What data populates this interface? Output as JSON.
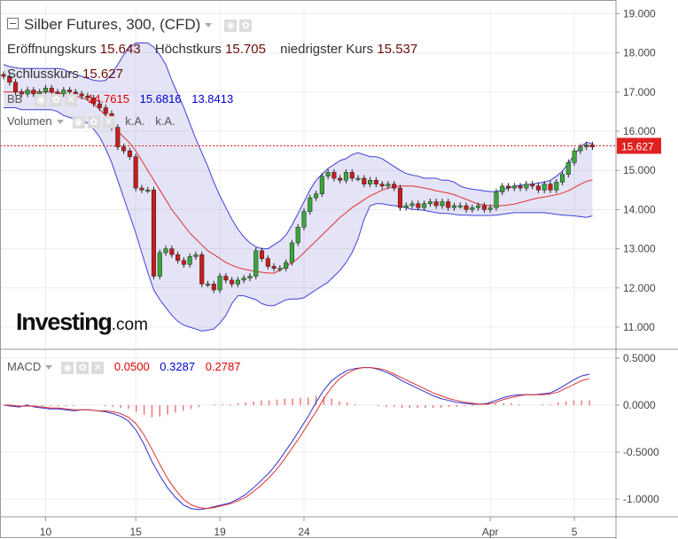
{
  "header": {
    "title": "Silber Futures, 300, (CFD)",
    "ohlc": [
      {
        "label": "Eröffnungskurs",
        "value": "15.643"
      },
      {
        "label": "Höchstkurs",
        "value": "15.705"
      },
      {
        "label": "niedrigster Kurs",
        "value": "15.537"
      },
      {
        "label": "Schlusskurs",
        "value": "15.627"
      }
    ]
  },
  "indicators": {
    "bb": {
      "label": "BB",
      "v1": "14.7615",
      "v2": "15.6816",
      "v3": "13.8413"
    },
    "volume": {
      "label": "Volumen",
      "v1": "k.A.",
      "v2": "k.A."
    },
    "macd": {
      "label": "MACD",
      "v1": "0.0500",
      "v2": "0.3287",
      "v3": "0.2787"
    }
  },
  "logo": {
    "main": "Investing",
    "suffix": ".com"
  },
  "price_tag": "15.627",
  "colors": {
    "up": "#3aa63a",
    "down": "#c91c1c",
    "bb_band": "#4040d8",
    "bb_mid": "#e03030",
    "fill": "rgba(120,120,210,0.2)",
    "macd": "#2e2ed6",
    "signal": "#e03030",
    "hist": "#f07070"
  },
  "chart_data": [
    {
      "type": "candlestick",
      "title": "Silber Futures, 300, (CFD)",
      "x_ticks": [
        {
          "index": 7,
          "label": "10"
        },
        {
          "index": 22,
          "label": "15"
        },
        {
          "index": 36,
          "label": "19"
        },
        {
          "index": 50,
          "label": "24"
        },
        {
          "index": 81,
          "label": "Apr"
        },
        {
          "index": 95,
          "label": "5"
        }
      ],
      "ylim": [
        10.6,
        19.2
      ],
      "y_ticks": [
        "19.000",
        "18.000",
        "17.000",
        "16.000",
        "15.000",
        "14.000",
        "13.000",
        "12.000",
        "11.000"
      ],
      "last_price": 15.627,
      "close": [
        17.4,
        17.25,
        17.0,
        16.95,
        17.05,
        16.95,
        17.0,
        17.1,
        17.0,
        16.95,
        17.05,
        17.0,
        16.95,
        16.9,
        16.85,
        16.7,
        16.6,
        16.45,
        16.1,
        15.6,
        15.5,
        15.35,
        14.55,
        14.5,
        14.5,
        12.3,
        12.9,
        13.0,
        12.85,
        12.7,
        12.6,
        12.8,
        12.85,
        12.1,
        12.1,
        11.95,
        12.3,
        12.2,
        12.1,
        12.2,
        12.25,
        12.3,
        12.95,
        12.75,
        12.55,
        12.5,
        12.5,
        12.65,
        13.15,
        13.55,
        13.95,
        14.3,
        14.4,
        14.85,
        14.95,
        14.8,
        14.75,
        14.95,
        14.8,
        14.8,
        14.65,
        14.75,
        14.65,
        14.6,
        14.65,
        14.55,
        14.05,
        14.1,
        14.15,
        14.05,
        14.15,
        14.2,
        14.1,
        14.2,
        14.05,
        14.1,
        14.1,
        14.0,
        14.05,
        14.1,
        14.0,
        14.05,
        14.45,
        14.6,
        14.55,
        14.6,
        14.55,
        14.65,
        14.6,
        14.5,
        14.65,
        14.5,
        14.7,
        14.9,
        15.2,
        15.5,
        15.6,
        15.65,
        15.6
      ],
      "bb_mid": [
        17.0,
        17.0,
        17.0,
        17.0,
        17.0,
        17.0,
        17.0,
        17.0,
        17.0,
        16.98,
        16.96,
        16.93,
        16.9,
        16.85,
        16.8,
        16.7,
        16.55,
        16.4,
        16.2,
        16.0,
        15.85,
        15.7,
        15.5,
        15.25,
        15.0,
        14.75,
        14.5,
        14.25,
        14.0,
        13.8,
        13.6,
        13.4,
        13.25,
        13.1,
        12.95,
        12.85,
        12.75,
        12.65,
        12.58,
        12.52,
        12.48,
        12.45,
        12.42,
        12.4,
        12.38,
        12.38,
        12.45,
        12.55,
        12.65,
        12.75,
        12.9,
        13.05,
        13.2,
        13.35,
        13.5,
        13.65,
        13.8,
        13.92,
        14.05,
        14.15,
        14.25,
        14.35,
        14.42,
        14.5,
        14.55,
        14.58,
        14.6,
        14.6,
        14.6,
        14.58,
        14.55,
        14.52,
        14.48,
        14.45,
        14.42,
        14.38,
        14.32,
        14.26,
        14.2,
        14.14,
        14.12,
        14.1,
        14.1,
        14.1,
        14.12,
        14.14,
        14.18,
        14.22,
        14.26,
        14.3,
        14.32,
        14.35,
        14.38,
        14.42,
        14.48,
        14.56,
        14.65,
        14.72,
        14.76
      ],
      "bb_upper": [
        17.7,
        17.65,
        17.62,
        17.6,
        17.6,
        17.6,
        17.6,
        17.6,
        17.6,
        17.6,
        17.58,
        17.5,
        17.45,
        17.4,
        17.35,
        17.3,
        17.28,
        17.3,
        17.45,
        17.7,
        17.95,
        18.15,
        18.25,
        18.25,
        18.25,
        18.15,
        17.95,
        17.7,
        17.3,
        16.95,
        16.6,
        16.2,
        15.8,
        15.45,
        15.1,
        14.7,
        14.35,
        14.05,
        13.75,
        13.5,
        13.3,
        13.15,
        13.05,
        13.0,
        13.0,
        13.1,
        13.2,
        13.35,
        13.6,
        13.9,
        14.2,
        14.5,
        14.75,
        14.9,
        15.05,
        15.15,
        15.25,
        15.3,
        15.4,
        15.45,
        15.4,
        15.35,
        15.35,
        15.3,
        15.2,
        15.1,
        15.0,
        14.92,
        14.88,
        14.85,
        14.8,
        14.8,
        14.8,
        14.75,
        14.75,
        14.7,
        14.6,
        14.55,
        14.52,
        14.5,
        14.48,
        14.46,
        14.46,
        14.5,
        14.55,
        14.6,
        14.62,
        14.64,
        14.65,
        14.68,
        14.7,
        14.75,
        14.85,
        14.98,
        15.18,
        15.4,
        15.6,
        15.72,
        15.68
      ],
      "bb_lower": [
        16.6,
        16.6,
        16.6,
        16.55,
        16.55,
        16.55,
        16.55,
        16.55,
        16.55,
        16.5,
        16.4,
        16.35,
        16.3,
        16.28,
        16.2,
        16.05,
        15.85,
        15.55,
        15.2,
        14.75,
        14.3,
        13.85,
        13.4,
        12.9,
        12.4,
        11.95,
        11.7,
        11.5,
        11.3,
        11.15,
        11.05,
        11.0,
        10.95,
        10.9,
        10.92,
        10.95,
        11.1,
        11.3,
        11.6,
        11.8,
        11.8,
        11.75,
        11.7,
        11.6,
        11.55,
        11.55,
        11.62,
        11.7,
        11.72,
        11.72,
        11.75,
        11.85,
        11.95,
        12.05,
        12.15,
        12.3,
        12.45,
        12.65,
        12.9,
        13.25,
        13.75,
        14.1,
        14.15,
        14.15,
        14.12,
        14.1,
        14.08,
        14.05,
        14.0,
        14.0,
        13.98,
        13.95,
        13.92,
        13.9,
        13.9,
        13.88,
        13.86,
        13.86,
        13.85,
        13.85,
        13.85,
        13.85,
        13.86,
        13.88,
        13.9,
        13.92,
        13.92,
        13.92,
        13.92,
        13.92,
        13.92,
        13.9,
        13.88,
        13.86,
        13.85,
        13.84,
        13.82,
        13.8,
        13.84
      ]
    },
    {
      "type": "line",
      "title": "MACD",
      "ylim": [
        -1.15,
        0.55
      ],
      "y_ticks": [
        "0.5000",
        "0.0000",
        "-0.5000",
        "-1.0000"
      ],
      "series": [
        {
          "name": "MACD",
          "values": [
            0.0,
            -0.01,
            -0.02,
            0.0,
            -0.02,
            -0.03,
            -0.04,
            -0.04,
            -0.05,
            -0.06,
            -0.05,
            -0.05,
            -0.06,
            -0.07,
            -0.09,
            -0.12,
            -0.17,
            -0.27,
            -0.42,
            -0.6,
            -0.75,
            -0.88,
            -0.98,
            -1.06,
            -1.1,
            -1.11,
            -1.1,
            -1.08,
            -1.06,
            -1.04,
            -1.0,
            -0.95,
            -0.88,
            -0.8,
            -0.72,
            -0.62,
            -0.5,
            -0.38,
            -0.25,
            -0.12,
            0.03,
            0.16,
            0.26,
            0.32,
            0.37,
            0.39,
            0.4,
            0.4,
            0.38,
            0.35,
            0.31,
            0.26,
            0.22,
            0.18,
            0.14,
            0.1,
            0.07,
            0.05,
            0.03,
            0.02,
            0.01,
            0.01,
            0.02,
            0.05,
            0.08,
            0.1,
            0.11,
            0.11,
            0.11,
            0.12,
            0.13,
            0.17,
            0.22,
            0.27,
            0.31,
            0.33
          ]
        },
        {
          "name": "Signal",
          "values": [
            0.0,
            0.0,
            -0.01,
            -0.01,
            -0.01,
            -0.02,
            -0.03,
            -0.03,
            -0.04,
            -0.05,
            -0.05,
            -0.05,
            -0.06,
            -0.06,
            -0.07,
            -0.09,
            -0.13,
            -0.2,
            -0.32,
            -0.47,
            -0.63,
            -0.78,
            -0.9,
            -1.0,
            -1.06,
            -1.09,
            -1.1,
            -1.09,
            -1.07,
            -1.05,
            -1.02,
            -0.98,
            -0.92,
            -0.85,
            -0.77,
            -0.68,
            -0.57,
            -0.45,
            -0.33,
            -0.2,
            -0.07,
            0.07,
            0.19,
            0.28,
            0.34,
            0.38,
            0.4,
            0.4,
            0.39,
            0.37,
            0.33,
            0.29,
            0.25,
            0.21,
            0.17,
            0.13,
            0.1,
            0.07,
            0.05,
            0.03,
            0.02,
            0.01,
            0.01,
            0.03,
            0.06,
            0.08,
            0.1,
            0.11,
            0.11,
            0.11,
            0.12,
            0.14,
            0.18,
            0.22,
            0.26,
            0.28
          ]
        },
        {
          "name": "Histogram",
          "values": [
            0.0,
            -0.01,
            -0.01,
            0.01,
            -0.01,
            -0.01,
            -0.01,
            -0.01,
            -0.01,
            -0.01,
            0.0,
            0.0,
            0.0,
            -0.01,
            -0.02,
            -0.03,
            -0.04,
            -0.07,
            -0.1,
            -0.13,
            -0.12,
            -0.1,
            -0.08,
            -0.06,
            -0.04,
            -0.02,
            0.0,
            0.01,
            0.01,
            0.01,
            0.02,
            0.03,
            0.04,
            0.05,
            0.05,
            0.06,
            0.07,
            0.07,
            0.08,
            0.08,
            0.1,
            0.09,
            0.07,
            0.04,
            0.03,
            0.01,
            0.0,
            0.0,
            -0.01,
            -0.02,
            -0.02,
            -0.03,
            -0.03,
            -0.03,
            -0.03,
            -0.03,
            -0.03,
            -0.02,
            -0.02,
            -0.01,
            -0.01,
            0.0,
            0.01,
            0.02,
            0.02,
            0.02,
            0.01,
            0.0,
            0.0,
            0.01,
            0.01,
            0.03,
            0.04,
            0.05,
            0.05,
            0.05
          ]
        }
      ]
    }
  ]
}
